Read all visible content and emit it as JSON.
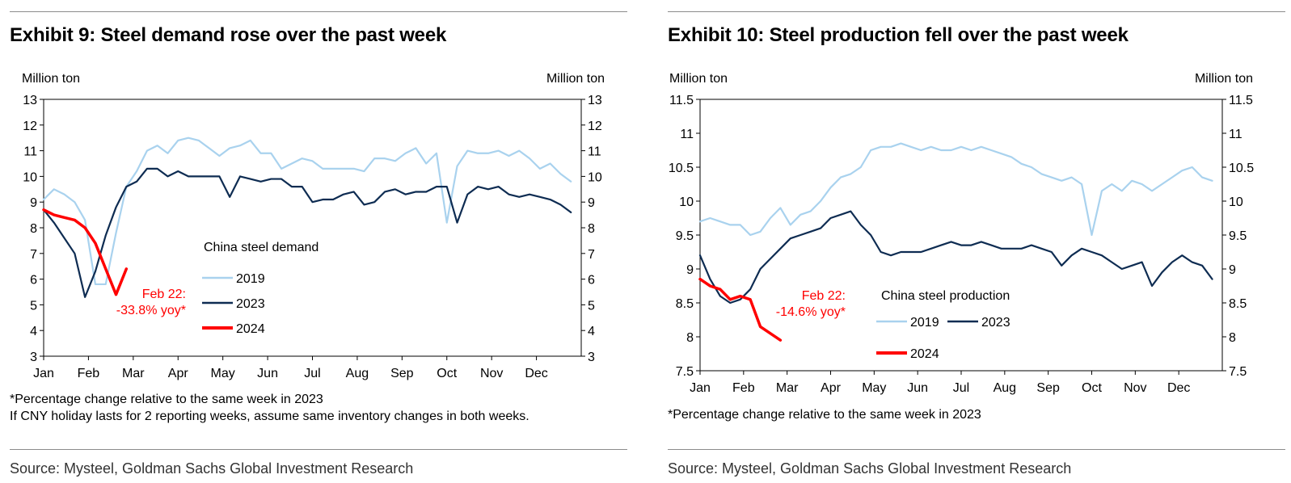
{
  "colors": {
    "c2019": "#a9d2ee",
    "c2023": "#0e2c52",
    "c2024": "#ff0000",
    "annotation": "#ff0000"
  },
  "panels": [
    {
      "title": "Exhibit 9: Steel demand rose over the past week",
      "notes": [
        "*Percentage change relative to the same week in 2023",
        "If CNY holiday lasts for 2 reporting weeks, assume same inventory changes in both weeks."
      ],
      "source": "Source: Mysteel, Goldman Sachs Global Investment Research"
    },
    {
      "title": "Exhibit 10: Steel production fell over the past week",
      "notes": [
        "*Percentage change relative to the same week in 2023"
      ],
      "source": "Source: Mysteel, Goldman Sachs Global Investment Research"
    }
  ],
  "chart_data": [
    {
      "type": "line",
      "ylabel_left": "Million ton",
      "ylabel_right": "Million ton",
      "ylim": [
        3,
        13
      ],
      "yticks": [
        "3",
        "4",
        "5",
        "6",
        "7",
        "8",
        "9",
        "10",
        "11",
        "12",
        "13"
      ],
      "months": [
        "Jan",
        "Feb",
        "Mar",
        "Apr",
        "May",
        "Jun",
        "Jul",
        "Aug",
        "Sep",
        "Oct",
        "Nov",
        "Dec"
      ],
      "x_unit": "week",
      "xlim": [
        0,
        52
      ],
      "legend_title": "China steel demand",
      "legend": [
        "2019",
        "2023",
        "2024"
      ],
      "annotation": [
        "Feb 22:",
        "-33.8% yoy*"
      ],
      "series": [
        {
          "name": "2019",
          "color_key": "c2019",
          "values": [
            9.1,
            9.5,
            9.3,
            9.0,
            8.3,
            5.8,
            5.8,
            7.8,
            9.6,
            10.2,
            11.0,
            11.2,
            10.9,
            11.4,
            11.5,
            11.4,
            11.1,
            10.8,
            11.1,
            11.2,
            11.4,
            10.9,
            10.9,
            10.3,
            10.5,
            10.7,
            10.6,
            10.3,
            10.3,
            10.3,
            10.3,
            10.2,
            10.7,
            10.7,
            10.6,
            10.9,
            11.1,
            10.5,
            10.9,
            8.2,
            10.4,
            11.0,
            10.9,
            10.9,
            11.0,
            10.8,
            11.0,
            10.7,
            10.3,
            10.5,
            10.1,
            9.8
          ]
        },
        {
          "name": "2023",
          "color_key": "c2023",
          "values": [
            8.7,
            8.2,
            7.6,
            7.0,
            5.3,
            6.3,
            7.7,
            8.8,
            9.6,
            9.8,
            10.3,
            10.3,
            10.0,
            10.2,
            10.0,
            10.0,
            10.0,
            10.0,
            9.2,
            10.0,
            9.9,
            9.8,
            9.9,
            9.9,
            9.6,
            9.6,
            9.0,
            9.1,
            9.1,
            9.3,
            9.4,
            8.9,
            9.0,
            9.4,
            9.5,
            9.3,
            9.4,
            9.4,
            9.6,
            9.6,
            8.2,
            9.3,
            9.6,
            9.5,
            9.6,
            9.3,
            9.2,
            9.3,
            9.2,
            9.1,
            8.9,
            8.6
          ]
        },
        {
          "name": "2024",
          "color_key": "c2024",
          "values": [
            8.7,
            8.5,
            8.4,
            8.3,
            8.0,
            7.4,
            6.4,
            5.4,
            6.4
          ]
        }
      ]
    },
    {
      "type": "line",
      "ylabel_left": "Million ton",
      "ylabel_right": "Million ton",
      "ylim": [
        7.5,
        11.5
      ],
      "yticks": [
        "7.5",
        "8",
        "8.5",
        "9",
        "9.5",
        "10",
        "10.5",
        "11",
        "11.5"
      ],
      "months": [
        "Jan",
        "Feb",
        "Mar",
        "Apr",
        "May",
        "Jun",
        "Jul",
        "Aug",
        "Sep",
        "Oct",
        "Nov",
        "Dec"
      ],
      "x_unit": "week",
      "xlim": [
        0,
        52
      ],
      "legend_title": "China steel production",
      "legend": [
        "2019",
        "2023",
        "2024"
      ],
      "annotation": [
        "Feb 22:",
        "-14.6% yoy*"
      ],
      "series": [
        {
          "name": "2019",
          "color_key": "c2019",
          "values": [
            9.7,
            9.75,
            9.7,
            9.65,
            9.65,
            9.5,
            9.55,
            9.75,
            9.9,
            9.65,
            9.8,
            9.85,
            10.0,
            10.2,
            10.35,
            10.4,
            10.5,
            10.75,
            10.8,
            10.8,
            10.85,
            10.8,
            10.75,
            10.8,
            10.75,
            10.75,
            10.8,
            10.75,
            10.8,
            10.75,
            10.7,
            10.65,
            10.55,
            10.5,
            10.4,
            10.35,
            10.3,
            10.35,
            10.25,
            9.5,
            10.15,
            10.25,
            10.15,
            10.3,
            10.25,
            10.15,
            10.25,
            10.35,
            10.45,
            10.5,
            10.35,
            10.3
          ]
        },
        {
          "name": "2023",
          "color_key": "c2023",
          "values": [
            9.2,
            8.85,
            8.6,
            8.5,
            8.55,
            8.7,
            9.0,
            9.15,
            9.3,
            9.45,
            9.5,
            9.55,
            9.6,
            9.75,
            9.8,
            9.85,
            9.65,
            9.5,
            9.25,
            9.2,
            9.25,
            9.25,
            9.25,
            9.3,
            9.35,
            9.4,
            9.35,
            9.35,
            9.4,
            9.35,
            9.3,
            9.3,
            9.3,
            9.35,
            9.3,
            9.25,
            9.05,
            9.2,
            9.3,
            9.25,
            9.2,
            9.1,
            9.0,
            9.05,
            9.1,
            8.75,
            8.95,
            9.1,
            9.2,
            9.1,
            9.05,
            8.85
          ]
        },
        {
          "name": "2024",
          "color_key": "c2024",
          "values": [
            8.85,
            8.75,
            8.7,
            8.55,
            8.6,
            8.55,
            8.15,
            8.05,
            7.95
          ]
        }
      ]
    }
  ]
}
